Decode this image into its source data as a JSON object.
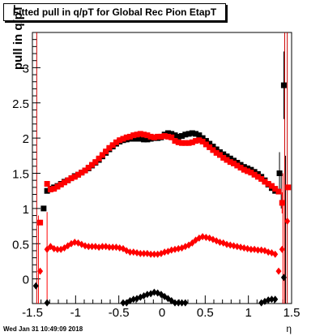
{
  "title": "Fitted pull in q/pT for Global Rec Pion EtapT",
  "timestamp": "Wed Jan 31 10:49:09 2018",
  "chart_data": {
    "type": "scatter",
    "xlabel": "η",
    "ylabel": "pull in q/pT",
    "xlim": [
      -1.5,
      1.5
    ],
    "ylim": [
      -0.35,
      3.5
    ],
    "xticks": [
      "-1.5",
      "-1",
      "-0.5",
      "0",
      "0.5",
      "1",
      "1.5"
    ],
    "yticks": [
      "0",
      "0.5",
      "1",
      "1.5",
      "2",
      "2.5",
      "3"
    ],
    "colors": {
      "black": "#000000",
      "red": "#ff0000",
      "redline": "#cc0000"
    },
    "series": [
      {
        "marker": "square",
        "color": "#000000",
        "x": [
          -1.37,
          -1.33,
          -1.29,
          -1.25,
          -1.21,
          -1.17,
          -1.13,
          -1.09,
          -1.05,
          -1.01,
          -0.97,
          -0.93,
          -0.89,
          -0.85,
          -0.81,
          -0.77,
          -0.73,
          -0.69,
          -0.65,
          -0.61,
          -0.57,
          -0.53,
          -0.49,
          -0.45,
          -0.41,
          -0.37,
          -0.33,
          -0.29,
          -0.25,
          -0.21,
          -0.17,
          -0.13,
          -0.09,
          -0.05,
          -0.01,
          0.03,
          0.07,
          0.11,
          0.15,
          0.19,
          0.23,
          0.27,
          0.31,
          0.35,
          0.39,
          0.43,
          0.47,
          0.51,
          0.55,
          0.59,
          0.63,
          0.67,
          0.71,
          0.75,
          0.79,
          0.83,
          0.87,
          0.91,
          0.95,
          0.99,
          1.03,
          1.07,
          1.11,
          1.15,
          1.19,
          1.23,
          1.27,
          1.31,
          1.36,
          1.41
        ],
        "y": [
          1.0,
          1.25,
          1.28,
          1.3,
          1.32,
          1.35,
          1.38,
          1.4,
          1.43,
          1.46,
          1.48,
          1.51,
          1.54,
          1.57,
          1.61,
          1.65,
          1.69,
          1.74,
          1.79,
          1.84,
          1.88,
          1.92,
          1.95,
          1.97,
          1.98,
          1.99,
          1.99,
          1.99,
          1.99,
          1.98,
          1.98,
          1.99,
          2.0,
          2.0,
          2.01,
          2.05,
          2.07,
          2.06,
          2.04,
          2.02,
          2.03,
          2.05,
          2.06,
          2.07,
          2.06,
          2.04,
          2.0,
          1.96,
          1.92,
          1.88,
          1.84,
          1.8,
          1.77,
          1.74,
          1.71,
          1.68,
          1.65,
          1.62,
          1.59,
          1.57,
          1.55,
          1.52,
          1.49,
          1.45,
          1.4,
          1.34,
          1.29,
          1.25,
          1.5,
          2.75
        ],
        "err": [
          0,
          0,
          0,
          0,
          0,
          0,
          0,
          0,
          0,
          0,
          0,
          0,
          0,
          0,
          0,
          0,
          0,
          0,
          0,
          0,
          0,
          0,
          0,
          0,
          0,
          0,
          0,
          0,
          0,
          0,
          0,
          0,
          0,
          0,
          0,
          0,
          0,
          0,
          0,
          0,
          0,
          0,
          0,
          0,
          0,
          0,
          0,
          0,
          0,
          0,
          0,
          0,
          0,
          0,
          0,
          0,
          0,
          0,
          0,
          0,
          0,
          0,
          0,
          0,
          0,
          0,
          0,
          0,
          0.3,
          0.48
        ]
      },
      {
        "marker": "square",
        "color": "#ff0000",
        "x": [
          -1.41,
          -1.33,
          -1.29,
          -1.25,
          -1.21,
          -1.17,
          -1.13,
          -1.09,
          -1.05,
          -1.01,
          -0.97,
          -0.93,
          -0.89,
          -0.85,
          -0.81,
          -0.77,
          -0.73,
          -0.69,
          -0.65,
          -0.61,
          -0.57,
          -0.53,
          -0.49,
          -0.45,
          -0.41,
          -0.37,
          -0.33,
          -0.29,
          -0.25,
          -0.21,
          -0.17,
          -0.13,
          -0.09,
          -0.05,
          -0.01,
          0.03,
          0.07,
          0.11,
          0.15,
          0.19,
          0.23,
          0.27,
          0.31,
          0.35,
          0.39,
          0.43,
          0.47,
          0.51,
          0.55,
          0.59,
          0.63,
          0.67,
          0.71,
          0.75,
          0.79,
          0.83,
          0.87,
          0.91,
          0.95,
          0.99,
          1.03,
          1.07,
          1.11,
          1.15,
          1.19,
          1.23,
          1.27,
          1.31,
          1.35,
          1.39,
          1.46
        ],
        "y": [
          0.8,
          1.35,
          1.27,
          1.28,
          1.31,
          1.34,
          1.37,
          1.4,
          1.43,
          1.45,
          1.48,
          1.51,
          1.54,
          1.58,
          1.62,
          1.66,
          1.71,
          1.76,
          1.81,
          1.86,
          1.9,
          1.94,
          1.97,
          1.99,
          2.01,
          2.02,
          2.04,
          2.05,
          2.06,
          2.05,
          2.04,
          2.02,
          2.01,
          2.02,
          2.02,
          2.03,
          2.02,
          2.01,
          1.96,
          1.94,
          1.93,
          1.93,
          1.93,
          1.94,
          1.96,
          1.97,
          1.95,
          1.91,
          1.87,
          1.83,
          1.79,
          1.76,
          1.72,
          1.69,
          1.66,
          1.64,
          1.61,
          1.58,
          1.55,
          1.53,
          1.51,
          1.48,
          1.45,
          1.42,
          1.38,
          1.35,
          1.32,
          1.28,
          1.24,
          1.08,
          1.3
        ],
        "err": [
          0,
          0,
          0,
          0,
          0,
          0,
          0,
          0,
          0,
          0,
          0,
          0,
          0,
          0,
          0,
          0,
          0,
          0,
          0,
          0,
          0,
          0,
          0,
          0,
          0,
          0,
          0,
          0,
          0,
          0,
          0,
          0,
          0,
          0,
          0,
          0,
          0,
          0,
          0,
          0,
          0,
          0,
          0,
          0,
          0,
          0,
          0,
          0,
          0,
          0,
          0,
          0,
          0,
          0,
          0,
          0,
          0,
          0,
          0,
          0,
          0,
          0,
          0,
          0,
          0,
          0,
          0,
          0,
          0,
          0.15,
          0
        ]
      },
      {
        "marker": "diamond",
        "color": "#ff0000",
        "x": [
          -1.41,
          -1.33,
          -1.29,
          -1.25,
          -1.21,
          -1.17,
          -1.13,
          -1.09,
          -1.05,
          -1.01,
          -0.97,
          -0.93,
          -0.89,
          -0.85,
          -0.81,
          -0.77,
          -0.73,
          -0.69,
          -0.65,
          -0.61,
          -0.57,
          -0.53,
          -0.49,
          -0.45,
          -0.41,
          -0.37,
          -0.33,
          -0.29,
          -0.25,
          -0.21,
          -0.17,
          -0.13,
          -0.09,
          -0.05,
          -0.01,
          0.03,
          0.07,
          0.11,
          0.15,
          0.19,
          0.23,
          0.27,
          0.31,
          0.35,
          0.39,
          0.43,
          0.47,
          0.51,
          0.55,
          0.59,
          0.63,
          0.67,
          0.71,
          0.75,
          0.79,
          0.83,
          0.87,
          0.91,
          0.95,
          0.99,
          1.03,
          1.07,
          1.11,
          1.15,
          1.19,
          1.23,
          1.27,
          1.31,
          1.35,
          1.39,
          1.45
        ],
        "y": [
          0.11,
          0.42,
          0.46,
          0.43,
          0.42,
          0.42,
          0.44,
          0.47,
          0.5,
          0.52,
          0.51,
          0.49,
          0.47,
          0.46,
          0.46,
          0.46,
          0.45,
          0.46,
          0.46,
          0.45,
          0.45,
          0.45,
          0.44,
          0.43,
          0.4,
          0.38,
          0.38,
          0.37,
          0.36,
          0.36,
          0.36,
          0.35,
          0.35,
          0.35,
          0.36,
          0.38,
          0.39,
          0.41,
          0.42,
          0.43,
          0.44,
          0.46,
          0.48,
          0.51,
          0.55,
          0.58,
          0.6,
          0.59,
          0.58,
          0.56,
          0.54,
          0.52,
          0.51,
          0.49,
          0.48,
          0.47,
          0.46,
          0.45,
          0.44,
          0.43,
          0.42,
          0.42,
          0.41,
          0.41,
          0.4,
          0.38,
          0.37,
          0.35,
          0.11,
          0.42,
          0.82
        ],
        "err": [
          0,
          0,
          0,
          0,
          0,
          0,
          0,
          0,
          0,
          0,
          0,
          0,
          0,
          0,
          0,
          0,
          0,
          0,
          0,
          0,
          0,
          0,
          0,
          0,
          0,
          0,
          0,
          0,
          0,
          0,
          0,
          0,
          0,
          0,
          0,
          0,
          0,
          0,
          0,
          0,
          0,
          0,
          0,
          0,
          0,
          0,
          0,
          0,
          0,
          0,
          0,
          0,
          0,
          0,
          0,
          0,
          0,
          0,
          0,
          0,
          0,
          0,
          0,
          0,
          0,
          0,
          0,
          0,
          0,
          0,
          0
        ]
      },
      {
        "marker": "diamond",
        "color": "#000000",
        "x": [
          -1.46,
          -1.33,
          -0.45,
          -0.41,
          -0.37,
          -0.33,
          -0.29,
          -0.25,
          -0.21,
          -0.17,
          -0.13,
          -0.09,
          -0.05,
          -0.01,
          0.03,
          0.07,
          0.11,
          0.15,
          0.19,
          0.23,
          0.27,
          1.15,
          1.19,
          1.23,
          1.27,
          1.31,
          1.41
        ],
        "y": [
          -0.1,
          -0.34,
          -0.34,
          -0.34,
          -0.31,
          -0.29,
          -0.28,
          -0.26,
          -0.24,
          -0.22,
          -0.21,
          -0.19,
          -0.2,
          -0.22,
          -0.25,
          -0.28,
          -0.31,
          -0.34,
          -0.34,
          -0.34,
          -0.34,
          -0.34,
          -0.32,
          -0.3,
          -0.29,
          -0.29,
          0.02
        ],
        "err": [
          0,
          0,
          0,
          0,
          0,
          0,
          0,
          0,
          0,
          0,
          0,
          0,
          0,
          0,
          0,
          0,
          0,
          0,
          0,
          0,
          0,
          0,
          0,
          0,
          0,
          0,
          0
        ]
      }
    ],
    "vertical_lines": [
      -1.45,
      1.42,
      1.45
    ],
    "error_bars": [
      {
        "x": -1.43,
        "y1": -0.35,
        "y2": 0.9,
        "color": "#ff0000"
      },
      {
        "x": -1.33,
        "y1": -0.35,
        "y2": 0.95,
        "color": "#ff0000"
      },
      {
        "x": 1.38,
        "y1": 1.0,
        "y2": 1.5,
        "color": "#000000"
      },
      {
        "x": 1.4,
        "y1": -0.35,
        "y2": 1.5,
        "color": "#ff0000"
      },
      {
        "x": 1.43,
        "y1": -0.35,
        "y2": 1.75,
        "color": "#000000"
      }
    ]
  }
}
